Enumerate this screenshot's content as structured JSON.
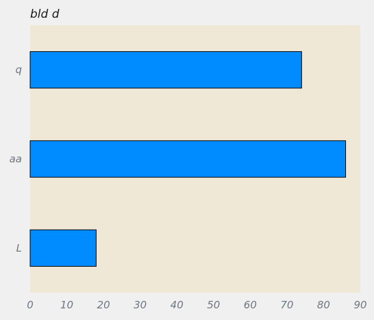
{
  "chart_data": {
    "type": "bar",
    "orientation": "horizontal",
    "title": "bld d",
    "xlabel": "",
    "ylabel": "",
    "categories": [
      "L",
      "aa",
      "q"
    ],
    "values": [
      18,
      86,
      74
    ],
    "xlim": [
      0,
      90
    ],
    "x_ticks": [
      0,
      10,
      20,
      30,
      40,
      50,
      60,
      70,
      80,
      90
    ],
    "grid": false,
    "legend": "none",
    "colors": {
      "page_background": "#f0f0f0",
      "plot_background": "#efe8d7",
      "bar_fill": "#008bff",
      "bar_edge": "#000000",
      "tick_text": "#6e7780",
      "title_text": "#1a1a1a"
    }
  }
}
